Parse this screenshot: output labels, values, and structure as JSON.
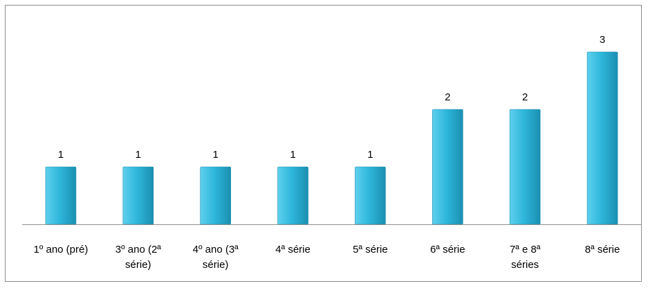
{
  "chart_data": {
    "type": "bar",
    "title": "",
    "xlabel": "",
    "ylabel": "",
    "categories": [
      [
        "1º ano (pré)"
      ],
      [
        "3º ano (2ª",
        "série)"
      ],
      [
        "4º ano (3ª",
        "série)"
      ],
      [
        "4ª série"
      ],
      [
        "5ª série"
      ],
      [
        "6ª série"
      ],
      [
        "7ª e 8ª",
        "séries"
      ],
      [
        "8ª série"
      ]
    ],
    "values": [
      1,
      1,
      1,
      1,
      1,
      2,
      2,
      3
    ],
    "ylim": [
      0,
      3
    ],
    "grid": false,
    "legend": "none",
    "data_labels": true,
    "colors": {
      "bar_light": "#5fd0ec",
      "bar_mid": "#2fb7dc",
      "bar_dark": "#1b8fb0",
      "axis": "#8c8c8c",
      "frame": "#8c8c8c"
    }
  }
}
